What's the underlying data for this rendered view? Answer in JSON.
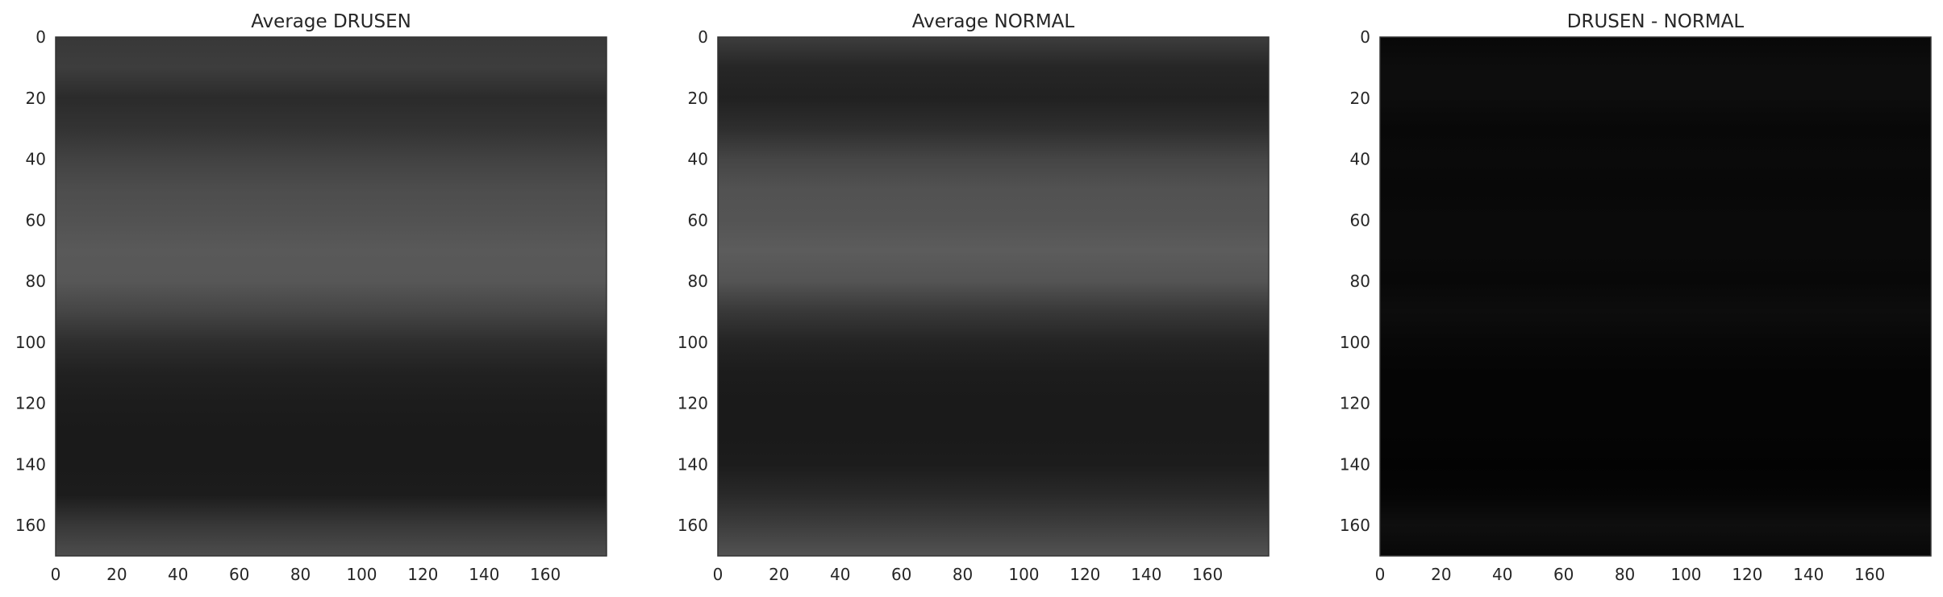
{
  "chart_data": [
    {
      "type": "heatmap",
      "title": "Average DRUSEN",
      "xlabel": "",
      "ylabel": "",
      "colormap": "gray",
      "xlim": [
        0,
        180
      ],
      "ylim": [
        170,
        0
      ],
      "x_ticks": [
        "0",
        "20",
        "40",
        "60",
        "80",
        "100",
        "120",
        "140",
        "160"
      ],
      "y_ticks": [
        "0",
        "20",
        "40",
        "60",
        "80",
        "100",
        "120",
        "140",
        "160"
      ],
      "grid": false,
      "intensity_profile": {
        "row_values": [
          0,
          10,
          20,
          30,
          40,
          50,
          60,
          70,
          80,
          90,
          100,
          110,
          120,
          130,
          140,
          150,
          160,
          170
        ],
        "brightness": [
          0.22,
          0.24,
          0.17,
          0.2,
          0.26,
          0.3,
          0.32,
          0.35,
          0.34,
          0.27,
          0.18,
          0.13,
          0.11,
          0.1,
          0.1,
          0.11,
          0.22,
          0.3
        ]
      }
    },
    {
      "type": "heatmap",
      "title": "Average NORMAL",
      "xlabel": "",
      "ylabel": "",
      "colormap": "gray",
      "xlim": [
        0,
        180
      ],
      "ylim": [
        170,
        0
      ],
      "x_ticks": [
        "0",
        "20",
        "40",
        "60",
        "80",
        "100",
        "120",
        "140",
        "160"
      ],
      "y_ticks": [
        "0",
        "20",
        "40",
        "60",
        "80",
        "100",
        "120",
        "140",
        "160"
      ],
      "grid": false,
      "intensity_profile": {
        "row_values": [
          0,
          10,
          20,
          30,
          40,
          50,
          60,
          70,
          80,
          90,
          100,
          110,
          120,
          130,
          140,
          150,
          160,
          170
        ],
        "brightness": [
          0.24,
          0.15,
          0.13,
          0.18,
          0.27,
          0.32,
          0.33,
          0.36,
          0.33,
          0.22,
          0.14,
          0.11,
          0.1,
          0.1,
          0.11,
          0.16,
          0.24,
          0.32
        ]
      }
    },
    {
      "type": "heatmap",
      "title": "DRUSEN - NORMAL",
      "xlabel": "",
      "ylabel": "",
      "colormap": "gray",
      "xlim": [
        0,
        180
      ],
      "ylim": [
        170,
        0
      ],
      "x_ticks": [
        "0",
        "20",
        "40",
        "60",
        "80",
        "100",
        "120",
        "140",
        "160"
      ],
      "y_ticks": [
        "0",
        "20",
        "40",
        "60",
        "80",
        "100",
        "120",
        "140",
        "160"
      ],
      "grid": false,
      "intensity_profile": {
        "row_values": [
          0,
          10,
          20,
          30,
          40,
          50,
          60,
          70,
          80,
          90,
          100,
          110,
          120,
          130,
          140,
          150,
          160,
          170
        ],
        "brightness": [
          0.03,
          0.05,
          0.05,
          0.03,
          0.04,
          0.03,
          0.04,
          0.04,
          0.03,
          0.05,
          0.03,
          0.02,
          0.02,
          0.02,
          0.01,
          0.02,
          0.06,
          0.03
        ]
      }
    }
  ]
}
